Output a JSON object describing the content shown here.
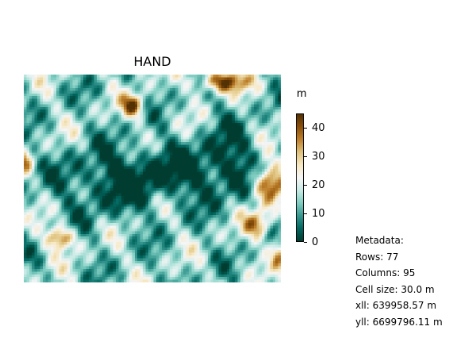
{
  "map": {
    "title": "HAND",
    "rows": 77,
    "columns": 95,
    "value_range": [
      0,
      45
    ],
    "colormap": "BrBG_r",
    "colormap_stops": [
      "#003c30",
      "#01665e",
      "#35978f",
      "#80cdc1",
      "#c7eae5",
      "#f5f5f5",
      "#f6e8c3",
      "#dfc27d",
      "#bf812d",
      "#8c510a",
      "#543005"
    ]
  },
  "colorbar": {
    "unit": "m",
    "min": 0,
    "max": 45,
    "ticks": [
      {
        "value": 0,
        "label": "0"
      },
      {
        "value": 10,
        "label": "10"
      },
      {
        "value": 20,
        "label": "20"
      },
      {
        "value": 30,
        "label": "30"
      },
      {
        "value": 40,
        "label": "40"
      }
    ]
  },
  "metadata": {
    "heading": "Metadata:",
    "rows_line": "Rows: 77",
    "columns_line": "Columns: 95",
    "cellsize_line": "Cell size: 30.0 m",
    "xll_line": "xll: 639958.57 m",
    "yll_line": "yll: 6699796.11 m"
  }
}
